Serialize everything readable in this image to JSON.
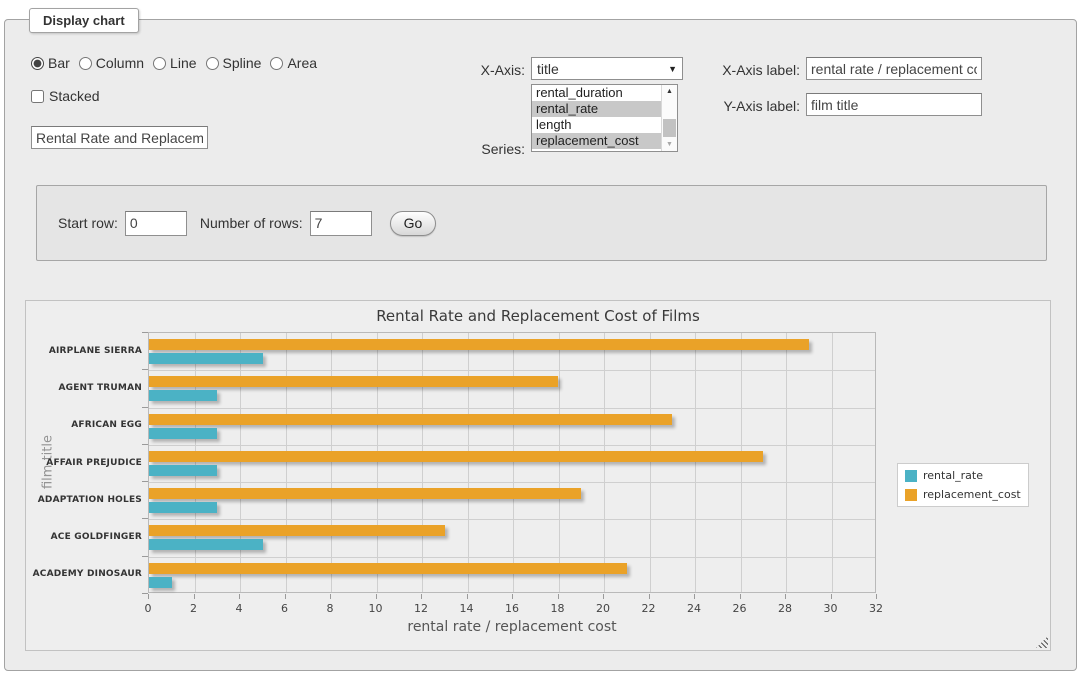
{
  "panel": {
    "legend": "Display chart"
  },
  "chart_type": {
    "options": [
      {
        "label": "Bar",
        "selected": true
      },
      {
        "label": "Column",
        "selected": false
      },
      {
        "label": "Line",
        "selected": false
      },
      {
        "label": "Spline",
        "selected": false
      },
      {
        "label": "Area",
        "selected": false
      }
    ],
    "stacked_label": "Stacked",
    "stacked_checked": false
  },
  "title_input": {
    "value": "Rental Rate and Replacement Cost of Films"
  },
  "axis_controls": {
    "x_axis_label": "X-Axis:",
    "x_axis_value": "title",
    "series_label": "Series:",
    "series_options": [
      {
        "label": "rental_duration",
        "selected": false
      },
      {
        "label": "rental_rate",
        "selected": true
      },
      {
        "label": "length",
        "selected": false
      },
      {
        "label": "replacement_cost",
        "selected": true
      }
    ],
    "x_axis_label_label": "X-Axis label:",
    "x_axis_label_value": "rental rate / replacement cost",
    "y_axis_label_label": "Y-Axis label:",
    "y_axis_label_value": "film title"
  },
  "row_controls": {
    "start_row_label": "Start row:",
    "start_row_value": "0",
    "rows_label": "Number of rows:",
    "rows_value": "7",
    "go_label": "Go"
  },
  "chart_data": {
    "type": "bar",
    "orientation": "horizontal",
    "title": "Rental Rate and Replacement Cost of Films",
    "xlabel": "rental rate / replacement cost",
    "ylabel": "film title",
    "categories": [
      "AIRPLANE SIERRA",
      "AGENT TRUMAN",
      "AFRICAN EGG",
      "AFFAIR PREJUDICE",
      "ADAPTATION HOLES",
      "ACE GOLDFINGER",
      "ACADEMY DINOSAUR"
    ],
    "series": [
      {
        "name": "rental_rate",
        "color": "#4bb2c5",
        "values": [
          4.99,
          2.99,
          2.99,
          2.99,
          2.99,
          4.99,
          0.99
        ]
      },
      {
        "name": "replacement_cost",
        "color": "#eaa228",
        "values": [
          28.99,
          17.99,
          22.99,
          26.99,
          18.99,
          12.99,
          20.99
        ]
      }
    ],
    "xlim": [
      0,
      32
    ],
    "xtick_step": 2,
    "grid": true,
    "legend_position": "right"
  }
}
